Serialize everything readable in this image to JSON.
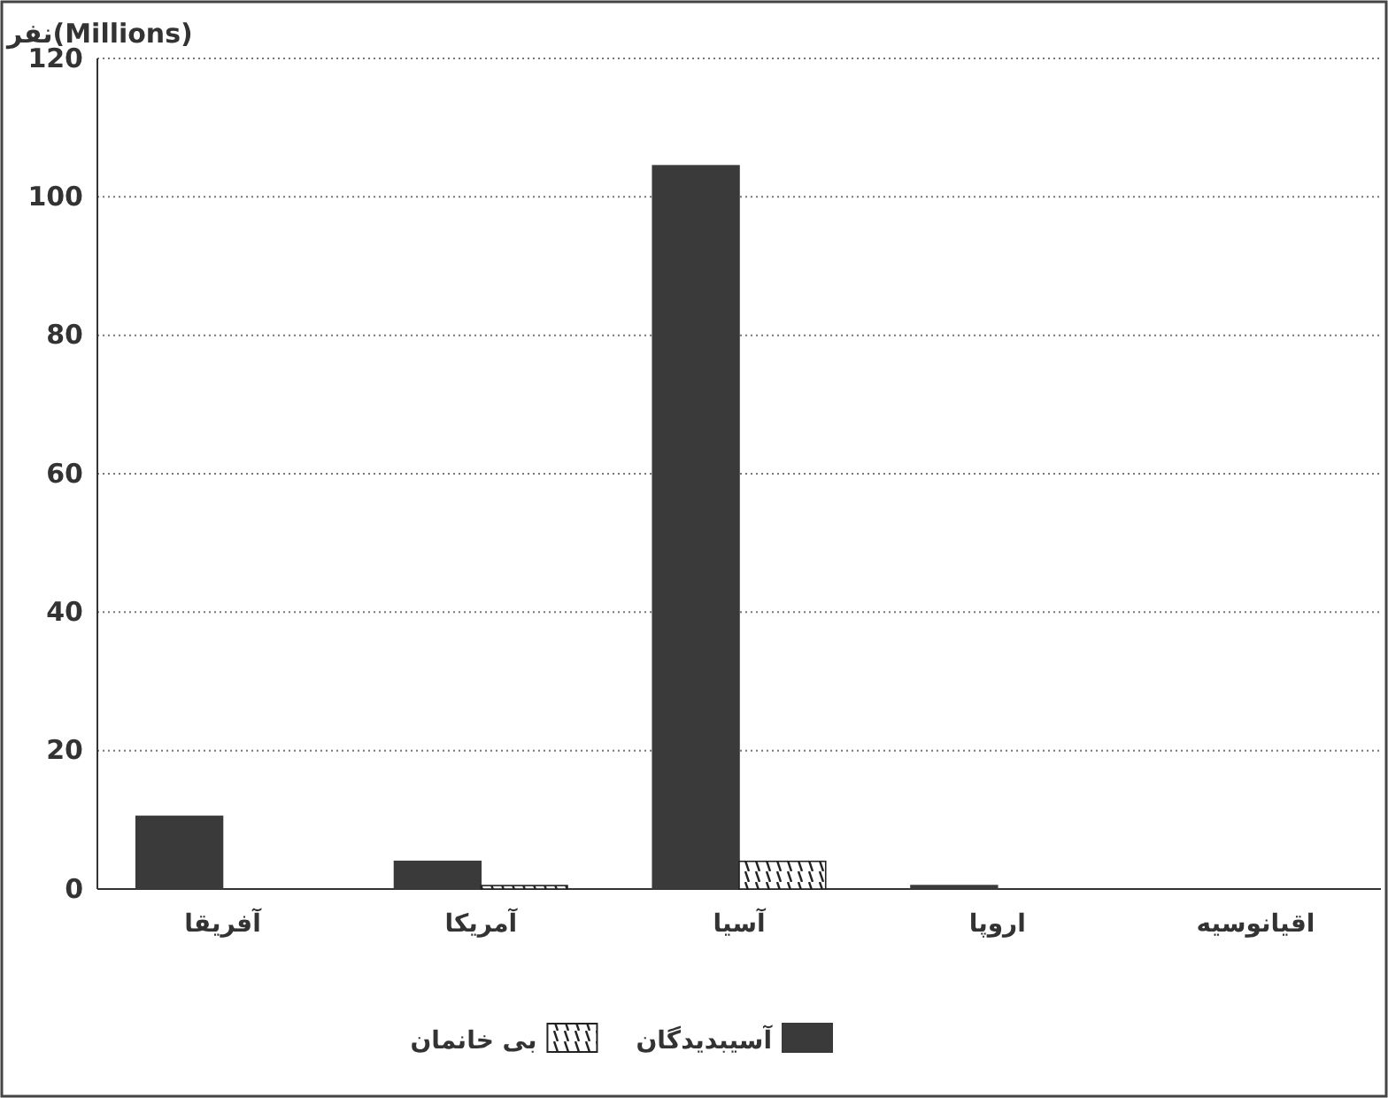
{
  "chart_data": {
    "type": "bar",
    "ylabel": "نفر(Millions)",
    "categories": [
      "آفریقا",
      "آمریکا",
      "آسیا",
      "اروپا",
      "اقیانوسیه"
    ],
    "series": [
      {
        "name": "آسیبدیدگان",
        "color": "#3a3a3a",
        "values": [
          10.5,
          4,
          104.5,
          0.5,
          0
        ]
      },
      {
        "name": "بی خانمان",
        "color": "#222222",
        "values": [
          0,
          0.5,
          4,
          0,
          0
        ]
      }
    ],
    "ylim": [
      0,
      120
    ],
    "yticks": [
      0,
      20,
      40,
      60,
      80,
      100,
      120
    ],
    "grid": "y",
    "legend": "bottom"
  }
}
